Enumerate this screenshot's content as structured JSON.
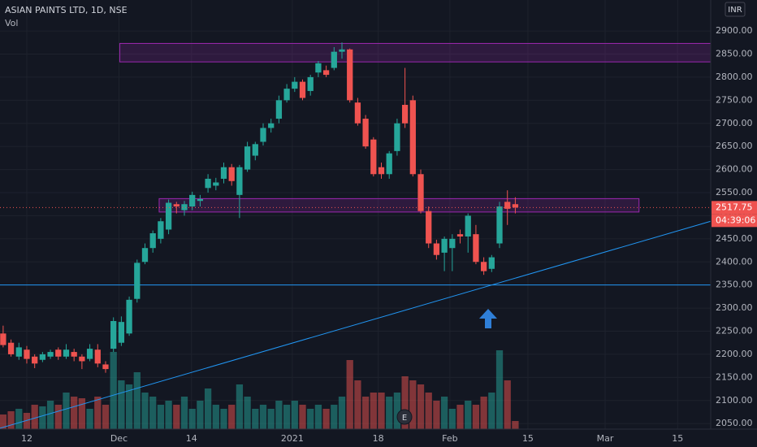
{
  "chart_data": {
    "type": "candlestick",
    "title": "ASIAN PAINTS LTD, 1D, NSE",
    "volume_label": "Vol",
    "currency": "INR",
    "countdown": "04:39:06",
    "up_color": "#26a69a",
    "down_color": "#ef5350",
    "x": [
      0,
      1,
      2,
      3,
      4,
      5,
      6,
      7,
      8,
      9,
      10,
      11,
      12,
      13,
      14,
      15,
      16,
      17,
      18,
      19,
      20,
      21,
      22,
      23,
      24,
      25,
      26,
      27,
      28,
      29,
      30,
      31,
      32,
      33,
      34,
      35,
      36,
      37,
      38,
      39,
      40,
      41,
      42,
      43,
      44,
      45,
      46,
      47,
      48,
      49,
      50,
      51,
      52,
      53,
      54,
      55,
      56,
      57,
      58,
      59,
      60,
      61,
      62,
      63,
      64,
      65
    ],
    "open": [
      2245,
      2225,
      2195,
      2210,
      2195,
      2188,
      2195,
      2210,
      2195,
      2205,
      2195,
      2190,
      2210,
      2178,
      2212,
      2225,
      2245,
      2320,
      2400,
      2430,
      2450,
      2470,
      2525,
      2512,
      2520,
      2532,
      2560,
      2565,
      2580,
      2605,
      2545,
      2600,
      2630,
      2660,
      2690,
      2710,
      2750,
      2775,
      2790,
      2770,
      2810,
      2815,
      2820,
      2855,
      2860,
      2745,
      2710,
      2665,
      2605,
      2590,
      2640,
      2740,
      2750,
      2590,
      2510,
      2440,
      2420,
      2430,
      2460,
      2455,
      2460,
      2400,
      2385,
      2440,
      2530,
      2525
    ],
    "high": [
      2262,
      2232,
      2225,
      2218,
      2200,
      2205,
      2210,
      2215,
      2222,
      2212,
      2200,
      2222,
      2222,
      2185,
      2280,
      2282,
      2325,
      2405,
      2440,
      2468,
      2495,
      2535,
      2530,
      2532,
      2552,
      2545,
      2590,
      2582,
      2615,
      2612,
      2610,
      2660,
      2660,
      2700,
      2710,
      2760,
      2785,
      2800,
      2795,
      2805,
      2835,
      2825,
      2865,
      2875,
      2862,
      2755,
      2718,
      2670,
      2615,
      2640,
      2710,
      2820,
      2760,
      2600,
      2520,
      2448,
      2455,
      2460,
      2470,
      2505,
      2480,
      2410,
      2415,
      2530,
      2555,
      2540
    ],
    "low": [
      2215,
      2195,
      2188,
      2180,
      2170,
      2183,
      2190,
      2188,
      2190,
      2185,
      2168,
      2185,
      2172,
      2160,
      2205,
      2218,
      2240,
      2312,
      2395,
      2420,
      2440,
      2460,
      2505,
      2500,
      2512,
      2520,
      2550,
      2555,
      2570,
      2565,
      2495,
      2595,
      2620,
      2652,
      2680,
      2700,
      2745,
      2768,
      2750,
      2760,
      2800,
      2800,
      2815,
      2840,
      2745,
      2695,
      2645,
      2585,
      2580,
      2580,
      2630,
      2690,
      2585,
      2505,
      2430,
      2405,
      2380,
      2380,
      2440,
      2420,
      2395,
      2372,
      2378,
      2430,
      2480,
      2505
    ],
    "close": [
      2220,
      2200,
      2215,
      2190,
      2180,
      2200,
      2205,
      2195,
      2210,
      2195,
      2185,
      2212,
      2180,
      2168,
      2272,
      2270,
      2318,
      2398,
      2430,
      2462,
      2488,
      2528,
      2520,
      2525,
      2545,
      2536,
      2580,
      2572,
      2605,
      2575,
      2605,
      2650,
      2655,
      2690,
      2700,
      2750,
      2775,
      2790,
      2755,
      2800,
      2830,
      2805,
      2855,
      2860,
      2750,
      2700,
      2650,
      2590,
      2590,
      2635,
      2700,
      2700,
      2590,
      2510,
      2440,
      2415,
      2450,
      2450,
      2455,
      2500,
      2400,
      2380,
      2410,
      2520,
      2515,
      2517.75
    ],
    "volume": [
      18,
      22,
      25,
      20,
      30,
      28,
      35,
      30,
      45,
      40,
      38,
      25,
      40,
      30,
      95,
      60,
      55,
      70,
      45,
      40,
      30,
      35,
      30,
      40,
      25,
      35,
      50,
      30,
      25,
      30,
      55,
      40,
      25,
      30,
      25,
      35,
      30,
      35,
      30,
      25,
      30,
      25,
      30,
      40,
      85,
      60,
      40,
      45,
      45,
      40,
      45,
      65,
      60,
      55,
      45,
      35,
      40,
      25,
      30,
      35,
      30,
      40,
      45,
      97,
      60,
      10
    ],
    "ylim": [
      2038,
      2967
    ],
    "yticks": [
      {
        "value": 2050,
        "label": "2050.00"
      },
      {
        "value": 2100,
        "label": "2100.00"
      },
      {
        "value": 2150,
        "label": "2150.00"
      },
      {
        "value": 2200,
        "label": "2200.00"
      },
      {
        "value": 2250,
        "label": "2250.00"
      },
      {
        "value": 2300,
        "label": "2300.00"
      },
      {
        "value": 2350,
        "label": "2350.00"
      },
      {
        "value": 2400,
        "label": "2400.00"
      },
      {
        "value": 2450,
        "label": "2450.00"
      },
      {
        "value": 2500,
        "label": "2500.00"
      },
      {
        "value": 2550,
        "label": "2550.00"
      },
      {
        "value": 2600,
        "label": "2600.00"
      },
      {
        "value": 2650,
        "label": "2650.00"
      },
      {
        "value": 2700,
        "label": "2700.00"
      },
      {
        "value": 2750,
        "label": "2750.00"
      },
      {
        "value": 2800,
        "label": "2800.00"
      },
      {
        "value": 2850,
        "label": "2850.00"
      },
      {
        "value": 2900,
        "label": "2900.00"
      }
    ],
    "xlim": [
      -0.4,
      89.8
    ],
    "xticks": [
      {
        "value": 3,
        "label": "12"
      },
      {
        "value": 14.7,
        "label": "Dec"
      },
      {
        "value": 23.9,
        "label": "14"
      },
      {
        "value": 36.7,
        "label": "2021"
      },
      {
        "value": 47.6,
        "label": "18"
      },
      {
        "value": 56.7,
        "label": "Feb"
      },
      {
        "value": 66.6,
        "label": "15"
      },
      {
        "value": 76.4,
        "label": "Mar"
      },
      {
        "value": 85.6,
        "label": "15"
      }
    ],
    "zones": [
      {
        "x": [
          14.8,
          89.8
        ],
        "y": [
          2833,
          2873
        ]
      },
      {
        "x": [
          19.8,
          80.7
        ],
        "y": [
          2508,
          2537
        ]
      }
    ],
    "hline": 2350,
    "trendline": {
      "x": [
        -0.4,
        89.8
      ],
      "y": [
        2040,
        2488
      ]
    },
    "grid": true
  }
}
